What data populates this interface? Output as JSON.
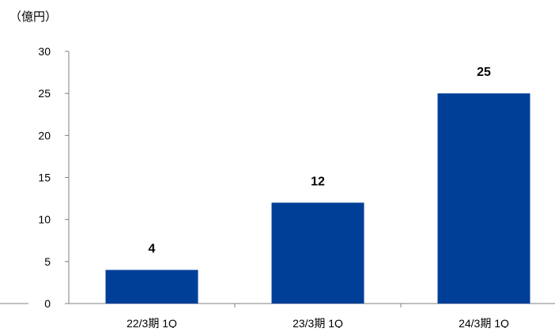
{
  "chart_data": {
    "type": "bar",
    "unit_label": "（億円）",
    "categories": [
      "22/3期 1Q",
      "23/3期 1Q",
      "24/3期 1Q"
    ],
    "series": [
      {
        "values": [
          4,
          12,
          25
        ]
      }
    ],
    "data_labels": [
      "4",
      "12",
      "25"
    ],
    "ylim": [
      0,
      30
    ],
    "yticks": [
      0,
      5,
      10,
      15,
      20,
      25,
      30
    ],
    "ytick_labels": [
      "0",
      "5",
      "10",
      "15",
      "20",
      "25",
      "30"
    ],
    "bar_color": "#003F98",
    "axis_color": "#808080",
    "grid": false,
    "legend": "none"
  }
}
